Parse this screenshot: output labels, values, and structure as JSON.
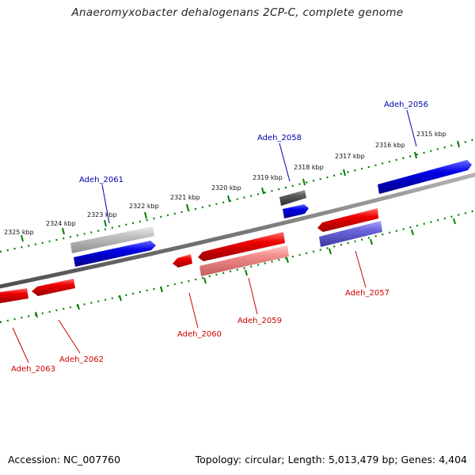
{
  "title": "Anaeromyxobacter dehalogenans 2CP-C, complete genome",
  "footer": {
    "accession": "Accession: NC_007760",
    "info": "Topology: circular; Length: 5,013,479 bp; Genes: 4,404"
  },
  "colors": {
    "forward_gene": "#0000e6",
    "reverse_gene": "#e60000",
    "backbone": "#777777",
    "tick": "#008000",
    "forward_label": "#0000aa",
    "reverse_label": "#cc0000"
  },
  "ticks": [
    {
      "label": "2315 kbp"
    },
    {
      "label": "2316 kbp"
    },
    {
      "label": "2317 kbp"
    },
    {
      "label": "2318 kbp"
    },
    {
      "label": "2319 kbp"
    },
    {
      "label": "2320 kbp"
    },
    {
      "label": "2321 kbp"
    },
    {
      "label": "2322 kbp"
    },
    {
      "label": "2323 kbp"
    },
    {
      "label": "2324 kbp"
    },
    {
      "label": "2325 kbp"
    }
  ],
  "genes": [
    {
      "label": "Adeh_2056",
      "strand": "forward"
    },
    {
      "label": "Adeh_2057",
      "strand": "reverse"
    },
    {
      "label": "Adeh_2058",
      "strand": "forward"
    },
    {
      "label": "Adeh_2059",
      "strand": "reverse"
    },
    {
      "label": "Adeh_2060",
      "strand": "reverse"
    },
    {
      "label": "Adeh_2061",
      "strand": "forward"
    },
    {
      "label": "Adeh_2062",
      "strand": "reverse"
    },
    {
      "label": "Adeh_2063",
      "strand": "reverse"
    }
  ]
}
